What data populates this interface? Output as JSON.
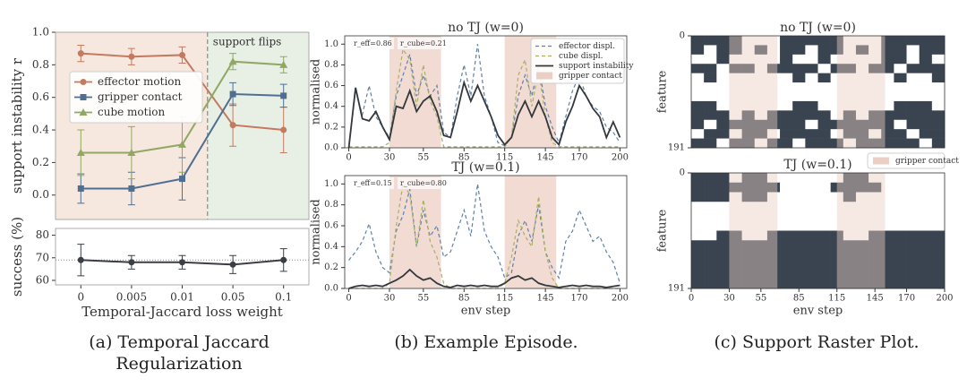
{
  "captions": [
    "(a) Temporal Jaccard Regularization",
    "(b) Example Episode.",
    "(c) Support Raster Plot."
  ],
  "chart_data": [
    {
      "type": "line",
      "ylabel": "support instability r",
      "ylim": [
        -0.15,
        1.0
      ],
      "yticks": [
        {
          "value": 0,
          "label": "0.0"
        },
        {
          "value": 0.2,
          "label": "0.2"
        },
        {
          "value": 0.4,
          "label": "0.4"
        },
        {
          "value": 0.6,
          "label": "0.6"
        },
        {
          "value": 0.8,
          "label": "0.8"
        },
        {
          "value": 1.0,
          "label": "1.0"
        }
      ],
      "annotation": "support flips",
      "background_colors": [
        "#f6e8de",
        "#e8efe5"
      ],
      "legend": "upper left",
      "series": [
        {
          "name": "effector motion",
          "color": "#c47a5f",
          "marker": "circle",
          "values": [
            0.87,
            0.85,
            0.86,
            0.43,
            0.4
          ],
          "errors": [
            0.05,
            0.05,
            0.05,
            0.13,
            0.14
          ]
        },
        {
          "name": "gripper contact",
          "color": "#4f6f92",
          "marker": "square",
          "values": [
            0.04,
            0.04,
            0.1,
            0.62,
            0.61
          ],
          "errors": [
            0.09,
            0.1,
            0.13,
            0.07,
            0.07
          ]
        },
        {
          "name": "cube motion",
          "color": "#90a862",
          "marker": "triangle",
          "values": [
            0.26,
            0.26,
            0.31,
            0.82,
            0.8
          ],
          "errors": [
            0.14,
            0.16,
            0.17,
            0.05,
            0.05
          ]
        }
      ]
    },
    {
      "type": "line",
      "ylabel": "success (%)",
      "xlabel": "Temporal-Jaccard loss weight",
      "categories": [
        "0",
        "0.005",
        "0.01",
        "0.05",
        "0.1"
      ],
      "ylim": [
        58,
        83
      ],
      "yticks": [
        60,
        70,
        80
      ],
      "hline": 69,
      "series": [
        {
          "color": "#3b3f45",
          "marker": "circle",
          "values": [
            69,
            68,
            68,
            67,
            69
          ],
          "errors": [
            7,
            3,
            3,
            4,
            5
          ]
        }
      ]
    },
    {
      "type": "line",
      "title": "no TJ (w=0)",
      "ylabel": "normalised",
      "x": [
        0,
        5,
        10,
        15,
        20,
        25,
        30,
        35,
        40,
        45,
        50,
        55,
        60,
        65,
        70,
        75,
        80,
        85,
        90,
        95,
        100,
        105,
        110,
        115,
        120,
        125,
        130,
        135,
        140,
        145,
        150,
        155,
        160,
        165,
        170,
        175,
        180,
        185,
        190,
        195,
        200
      ],
      "xlim": [
        -3,
        205
      ],
      "xticks": [
        0,
        30,
        55,
        85,
        115,
        145,
        170,
        200
      ],
      "ylim": [
        0,
        1.08
      ],
      "yticks": [
        {
          "value": 0,
          "label": "0.0"
        },
        {
          "value": 0.2,
          "label": "0.2"
        },
        {
          "value": 0.4,
          "label": "0.4"
        },
        {
          "value": 0.6,
          "label": "0.6"
        },
        {
          "value": 0.8,
          "label": "0.8"
        },
        {
          "value": 1.0,
          "label": "1.0"
        }
      ],
      "shaded_regions": [
        [
          30,
          68
        ],
        [
          115,
          153
        ]
      ],
      "shaded_name": "gripper contact",
      "shade_color": "#eccfc4",
      "legend": "upper right",
      "annotations": [
        "r_eff=0.86",
        "r_cube=0.21"
      ],
      "series": [
        {
          "name": "effector displ.",
          "color": "#5f80a8",
          "dash": true,
          "values": [
            0,
            0.55,
            0.32,
            0.6,
            0.3,
            0.2,
            0.1,
            0.5,
            0.7,
            0.9,
            0.5,
            0.7,
            0.5,
            0.6,
            0.15,
            0.1,
            0.5,
            0.8,
            0.5,
            1.0,
            0.5,
            0.3,
            0.05,
            0.02,
            0.1,
            0.5,
            0.7,
            0.5,
            0.8,
            0.4,
            0.2,
            0.05,
            0.3,
            0.55,
            0.7,
            0.5,
            0.4,
            0.35,
            0.2,
            0.15,
            0.05
          ]
        },
        {
          "name": "cube displ.",
          "color": "#a9b062",
          "dash": true,
          "values": [
            0.01,
            0.01,
            0.01,
            0.01,
            0.01,
            0.01,
            0.05,
            0.55,
            0.95,
            0.85,
            0.4,
            0.8,
            0.45,
            0.3,
            0.01,
            0.01,
            0.01,
            0.01,
            0.01,
            0.01,
            0.01,
            0.01,
            0.01,
            0.01,
            0.1,
            0.7,
            0.85,
            0.4,
            0.75,
            0.3,
            0.05,
            0.01,
            0.01,
            0.01,
            0.01,
            0.01,
            0.01,
            0.01,
            0.01,
            0.01,
            0.01
          ]
        },
        {
          "name": "support instability",
          "color": "#34383d",
          "values": [
            0,
            0.58,
            0.28,
            0.26,
            0.35,
            0.2,
            0.08,
            0.4,
            0.38,
            0.55,
            0.35,
            0.45,
            0.5,
            0.35,
            0.12,
            0.1,
            0.35,
            0.63,
            0.45,
            0.6,
            0.45,
            0.3,
            0.12,
            0.03,
            0.1,
            0.32,
            0.45,
            0.3,
            0.45,
            0.3,
            0.1,
            0.03,
            0.25,
            0.4,
            0.6,
            0.5,
            0.38,
            0.3,
            0.1,
            0.25,
            0.1
          ]
        }
      ]
    },
    {
      "type": "line",
      "title": "TJ (w=0.1)",
      "ylabel": "normalised",
      "xlabel": "env step",
      "x": [
        0,
        5,
        10,
        15,
        20,
        25,
        30,
        35,
        40,
        45,
        50,
        55,
        60,
        65,
        70,
        75,
        80,
        85,
        90,
        95,
        100,
        105,
        110,
        115,
        120,
        125,
        130,
        135,
        140,
        145,
        150,
        155,
        160,
        165,
        170,
        175,
        180,
        185,
        190,
        195,
        200
      ],
      "xlim": [
        -3,
        205
      ],
      "xticks": [
        0,
        30,
        55,
        85,
        115,
        145,
        170,
        200
      ],
      "ylim": [
        0,
        1.08
      ],
      "yticks": [
        {
          "value": 0,
          "label": "0.0"
        },
        {
          "value": 0.2,
          "label": "0.2"
        },
        {
          "value": 0.4,
          "label": "0.4"
        },
        {
          "value": 0.6,
          "label": "0.6"
        },
        {
          "value": 0.8,
          "label": "0.8"
        },
        {
          "value": 1.0,
          "label": "1.0"
        }
      ],
      "shaded_regions": [
        [
          30,
          68
        ],
        [
          115,
          153
        ]
      ],
      "shade_color": "#eccfc4",
      "annotations": [
        "r_eff=0.15",
        "r_cube=0.80"
      ],
      "series": [
        {
          "color": "#5f80a8",
          "dash": true,
          "values": [
            0.27,
            0.35,
            0.45,
            0.62,
            0.35,
            0.2,
            0.15,
            0.55,
            0.7,
            0.95,
            0.4,
            0.75,
            0.5,
            0.6,
            0.3,
            0.35,
            0.55,
            0.75,
            0.5,
            1.0,
            0.55,
            0.4,
            0.3,
            0.1,
            0.15,
            0.5,
            0.65,
            0.45,
            0.8,
            0.35,
            0.2,
            0.1,
            0.45,
            0.55,
            0.75,
            0.6,
            0.45,
            0.5,
            0.35,
            0.25,
            0.05
          ]
        },
        {
          "color": "#a9b062",
          "dash": true,
          "values": [
            0,
            0,
            0,
            0,
            0,
            0,
            0.05,
            0.6,
            1.0,
            0.9,
            0.4,
            0.85,
            0.45,
            0.3,
            0.05,
            0,
            0,
            0,
            0,
            0,
            0,
            0,
            0,
            0.05,
            0.3,
            0.65,
            0.5,
            0.4,
            0.88,
            0.35,
            0.1,
            0,
            0,
            0,
            0,
            0,
            0,
            0,
            0,
            0,
            0
          ]
        },
        {
          "color": "#34383d",
          "values": [
            0,
            0.02,
            0.03,
            0.02,
            0.03,
            0.02,
            0.05,
            0.08,
            0.12,
            0.18,
            0.12,
            0.08,
            0.1,
            0.05,
            0.02,
            0.01,
            0.03,
            0.02,
            0.03,
            0.02,
            0.03,
            0.02,
            0.02,
            0.05,
            0.1,
            0.12,
            0.08,
            0.1,
            0.05,
            0.03,
            0.02,
            0.01,
            0.02,
            0.03,
            0.02,
            0.03,
            0.02,
            0.02,
            0.01,
            0.02,
            0.03
          ]
        }
      ]
    },
    {
      "type": "raster",
      "title": "no TJ (w=0)",
      "ylabel": "feature",
      "xlim": [
        0,
        200
      ],
      "ylim": [
        0,
        191
      ],
      "yticks": [
        0,
        191
      ],
      "color": "#3a4450",
      "shaded_regions": [
        [
          30,
          68
        ],
        [
          115,
          153
        ]
      ],
      "shaded_name": "gripper contact",
      "shade_color": "#eccfc4",
      "legend": "lower right",
      "matrix": [
        [
          1,
          1,
          1,
          1,
          0,
          0,
          0,
          1,
          1,
          1,
          1,
          1,
          0,
          0,
          0,
          1,
          1,
          1,
          1,
          1
        ],
        [
          1,
          0,
          1,
          1,
          0,
          1,
          0,
          1,
          1,
          0,
          1,
          1,
          0,
          1,
          0,
          1,
          1,
          0,
          1,
          1
        ],
        [
          0,
          0,
          1,
          0,
          0,
          0,
          0,
          1,
          0,
          0,
          1,
          0,
          0,
          0,
          0,
          1,
          1,
          0,
          1,
          0
        ],
        [
          1,
          1,
          0,
          1,
          1,
          0,
          1,
          1,
          1,
          1,
          0,
          1,
          1,
          0,
          1,
          1,
          0,
          1,
          1,
          1
        ],
        [
          0,
          1,
          0,
          0,
          0,
          0,
          0,
          0,
          1,
          0,
          1,
          0,
          0,
          0,
          0,
          0,
          1,
          0,
          0,
          1
        ],
        [
          0,
          0,
          0,
          0,
          0,
          0,
          0,
          0,
          0,
          0,
          0,
          0,
          0,
          0,
          0,
          0,
          0,
          0,
          0,
          0
        ],
        [
          0,
          0,
          0,
          0,
          0,
          0,
          0,
          0,
          0,
          0,
          0,
          0,
          0,
          0,
          0,
          0,
          0,
          0,
          0,
          0
        ],
        [
          1,
          1,
          0,
          0,
          0,
          0,
          0,
          0,
          1,
          1,
          0,
          0,
          0,
          0,
          0,
          0,
          1,
          1,
          1,
          0
        ],
        [
          1,
          1,
          1,
          0,
          1,
          0,
          1,
          1,
          1,
          1,
          1,
          0,
          1,
          0,
          1,
          1,
          1,
          1,
          1,
          1
        ],
        [
          1,
          0,
          1,
          1,
          1,
          1,
          1,
          1,
          1,
          0,
          1,
          1,
          1,
          1,
          1,
          1,
          0,
          1,
          1,
          1
        ],
        [
          0,
          1,
          1,
          0,
          1,
          1,
          0,
          1,
          1,
          1,
          1,
          0,
          1,
          1,
          0,
          1,
          1,
          0,
          1,
          1
        ],
        [
          1,
          1,
          0,
          1,
          1,
          0,
          1,
          1,
          0,
          1,
          1,
          1,
          0,
          1,
          1,
          1,
          1,
          1,
          0,
          1
        ]
      ]
    },
    {
      "type": "raster",
      "title": "TJ (w=0.1)",
      "ylabel": "feature",
      "xlabel": "env step",
      "xlim": [
        0,
        200
      ],
      "ylim": [
        0,
        191
      ],
      "yticks": [
        0,
        191
      ],
      "xticks": [
        0,
        30,
        55,
        85,
        115,
        145,
        170,
        200
      ],
      "color": "#3a4450",
      "shaded_regions": [
        [
          30,
          68
        ],
        [
          115,
          153
        ]
      ],
      "shade_color": "#eccfc4",
      "matrix": [
        [
          1,
          1,
          1,
          0,
          1,
          1,
          0,
          0,
          0,
          0,
          0,
          0,
          1,
          1,
          0,
          0,
          0,
          0,
          0,
          0
        ],
        [
          1,
          1,
          1,
          1,
          1,
          1,
          1,
          0,
          0,
          0,
          0,
          1,
          1,
          1,
          1,
          0,
          0,
          0,
          0,
          0
        ],
        [
          1,
          1,
          1,
          0,
          1,
          1,
          0,
          0,
          0,
          0,
          0,
          0,
          1,
          0,
          0,
          0,
          0,
          0,
          0,
          0
        ],
        [
          0,
          0,
          0,
          0,
          0,
          0,
          0,
          0,
          0,
          0,
          0,
          0,
          0,
          0,
          0,
          0,
          0,
          0,
          0,
          0
        ],
        [
          0,
          0,
          0,
          0,
          0,
          0,
          0,
          0,
          0,
          0,
          0,
          0,
          0,
          0,
          0,
          0,
          0,
          0,
          0,
          0
        ],
        [
          0,
          0,
          0,
          0,
          0,
          0,
          0,
          0,
          0,
          0,
          0,
          0,
          0,
          0,
          0,
          0,
          0,
          0,
          0,
          0
        ],
        [
          0,
          0,
          1,
          1,
          0,
          0,
          1,
          1,
          1,
          1,
          1,
          1,
          0,
          0,
          1,
          1,
          1,
          1,
          1,
          1
        ],
        [
          1,
          1,
          1,
          1,
          1,
          1,
          1,
          1,
          1,
          1,
          1,
          1,
          1,
          1,
          1,
          1,
          1,
          1,
          1,
          1
        ],
        [
          1,
          1,
          1,
          1,
          1,
          1,
          1,
          1,
          1,
          1,
          1,
          1,
          1,
          1,
          1,
          1,
          1,
          1,
          1,
          1
        ],
        [
          1,
          1,
          1,
          1,
          1,
          1,
          1,
          1,
          1,
          1,
          1,
          1,
          1,
          1,
          1,
          1,
          1,
          1,
          1,
          1
        ],
        [
          1,
          1,
          1,
          1,
          1,
          1,
          1,
          1,
          1,
          1,
          1,
          1,
          1,
          1,
          1,
          1,
          1,
          1,
          1,
          1
        ],
        [
          1,
          1,
          1,
          1,
          1,
          1,
          1,
          1,
          1,
          1,
          1,
          1,
          1,
          1,
          1,
          1,
          1,
          1,
          1,
          1
        ]
      ]
    }
  ]
}
